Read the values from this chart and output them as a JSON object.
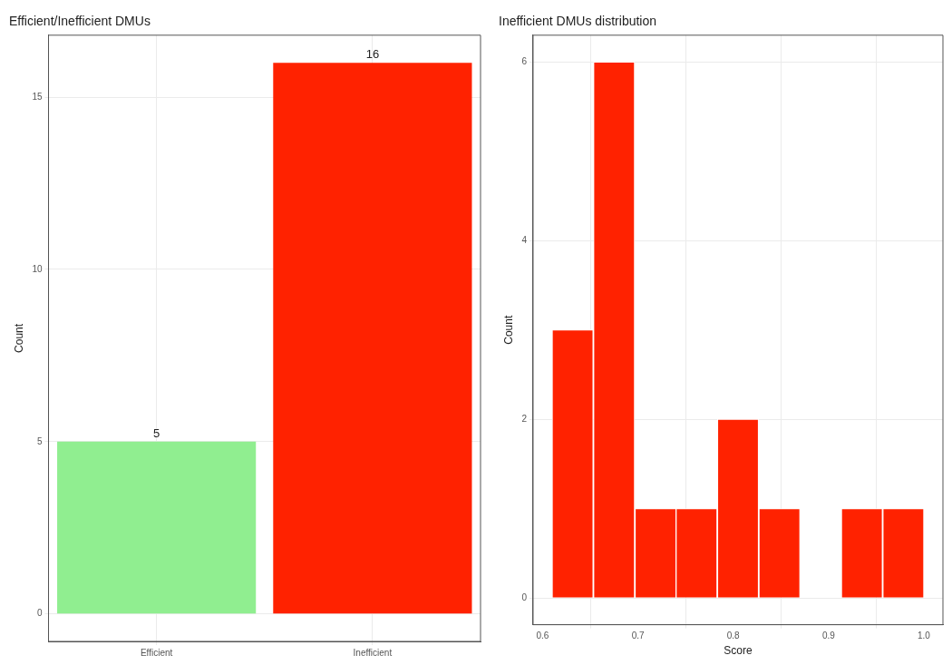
{
  "chart_data": [
    {
      "type": "bar",
      "title": "Efficient/Inefficient DMUs",
      "ylabel": "Count",
      "categories": [
        "Efficient",
        "Inefficient"
      ],
      "values": [
        5,
        16
      ],
      "colors": [
        "#90ee90",
        "#ff2200"
      ],
      "ylim": [
        -0.8,
        16.8
      ],
      "yticks": [
        0,
        5,
        10,
        15
      ],
      "grid": true,
      "data_labels": true
    },
    {
      "type": "histogram",
      "title": "Inefficient DMUs distribution",
      "xlabel": "Score",
      "ylabel": "Count",
      "bins": [
        0.61,
        0.653,
        0.697,
        0.74,
        0.783,
        0.827,
        0.87,
        0.913,
        0.957,
        1.0
      ],
      "values": [
        3,
        6,
        1,
        1,
        2,
        1,
        0,
        1,
        1
      ],
      "color": "#ff2200",
      "xlim": [
        0.59,
        1.02
      ],
      "xticks": [
        {
          "value": 0.6,
          "label": "0.6"
        },
        {
          "value": 0.7,
          "label": "0.7"
        },
        {
          "value": 0.8,
          "label": "0.8"
        },
        {
          "value": 0.9,
          "label": "0.9"
        },
        {
          "value": 1.0,
          "label": "1.0"
        }
      ],
      "ylim": [
        -0.3,
        6.3
      ],
      "yticks": [
        0,
        2,
        4,
        6
      ],
      "grid": true
    }
  ]
}
